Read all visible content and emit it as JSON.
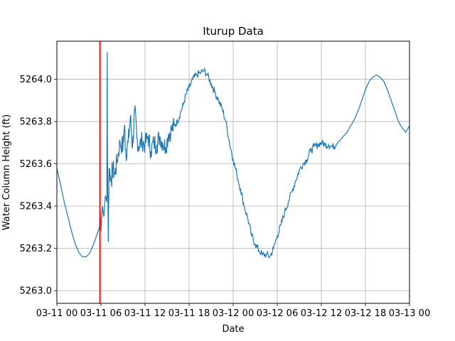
{
  "chart_data": {
    "type": "line",
    "title": "Iturup Data",
    "xlabel": "Date",
    "ylabel": "Water Column Height (ft)",
    "grid": true,
    "x_tick_labels": [
      "03-11 00",
      "03-11 06",
      "03-11 12",
      "03-11 18",
      "03-12 00",
      "03-12 06",
      "03-12 12",
      "03-12 18",
      "03-13 00"
    ],
    "x_tick_hours": [
      0,
      6,
      12,
      18,
      24,
      30,
      36,
      42,
      48
    ],
    "x_units": "hours since 03-11 00",
    "xlim": [
      0,
      48
    ],
    "y_ticks": [
      5263.0,
      5263.2,
      5263.4,
      5263.6,
      5263.8,
      5264.0
    ],
    "y_tick_labels": [
      "5263.0",
      "5263.2",
      "5263.4",
      "5263.6",
      "5263.8",
      "5264.0"
    ],
    "ylim": [
      5262.94,
      5264.18
    ],
    "vertical_marker": {
      "x": 5.85,
      "color": "#ff0000"
    },
    "series": [
      {
        "color": "#1f77b4",
        "points": [
          [
            0.0,
            5263.58
          ],
          [
            0.5,
            5263.5
          ],
          [
            1.0,
            5263.42
          ],
          [
            1.5,
            5263.35
          ],
          [
            2.0,
            5263.28
          ],
          [
            2.5,
            5263.22
          ],
          [
            3.0,
            5263.18
          ],
          [
            3.5,
            5263.16
          ],
          [
            4.0,
            5263.16
          ],
          [
            4.5,
            5263.18
          ],
          [
            5.0,
            5263.22
          ],
          [
            5.5,
            5263.27
          ],
          [
            5.8,
            5263.3
          ],
          [
            5.9,
            5263.38
          ],
          [
            6.0,
            5263.28
          ],
          [
            6.2,
            5263.4
          ],
          [
            6.4,
            5263.35
          ],
          [
            6.6,
            5263.45
          ],
          [
            6.8,
            5263.42
          ],
          [
            6.85,
            5264.13
          ],
          [
            6.9,
            5263.6
          ],
          [
            7.0,
            5263.23
          ],
          [
            7.1,
            5263.58
          ],
          [
            7.4,
            5263.52
          ],
          [
            7.6,
            5263.58
          ],
          [
            7.9,
            5263.55
          ],
          [
            8.2,
            5263.62
          ],
          [
            8.6,
            5263.7
          ],
          [
            9.0,
            5263.68
          ],
          [
            9.2,
            5263.78
          ],
          [
            9.4,
            5263.65
          ],
          [
            9.7,
            5263.7
          ],
          [
            10.0,
            5263.82
          ],
          [
            10.3,
            5263.68
          ],
          [
            10.6,
            5263.85
          ],
          [
            10.9,
            5263.72
          ],
          [
            11.2,
            5263.68
          ],
          [
            11.6,
            5263.71
          ],
          [
            12.0,
            5263.69
          ],
          [
            12.4,
            5263.73
          ],
          [
            12.8,
            5263.66
          ],
          [
            13.2,
            5263.7
          ],
          [
            13.6,
            5263.69
          ],
          [
            14.0,
            5263.73
          ],
          [
            14.4,
            5263.7
          ],
          [
            14.8,
            5263.68
          ],
          [
            15.2,
            5263.74
          ],
          [
            15.6,
            5263.76
          ],
          [
            16.0,
            5263.78
          ],
          [
            16.4,
            5263.8
          ],
          [
            16.8,
            5263.84
          ],
          [
            17.2,
            5263.88
          ],
          [
            17.6,
            5263.93
          ],
          [
            18.0,
            5263.96
          ],
          [
            18.5,
            5264.0
          ],
          [
            19.0,
            5264.02
          ],
          [
            19.5,
            5264.03
          ],
          [
            20.0,
            5264.04
          ],
          [
            20.5,
            5264.02
          ],
          [
            21.0,
            5263.98
          ],
          [
            21.5,
            5263.94
          ],
          [
            22.0,
            5263.9
          ],
          [
            22.5,
            5263.86
          ],
          [
            23.0,
            5263.8
          ],
          [
            23.5,
            5263.7
          ],
          [
            24.0,
            5263.62
          ],
          [
            24.5,
            5263.55
          ],
          [
            25.0,
            5263.48
          ],
          [
            25.5,
            5263.4
          ],
          [
            26.0,
            5263.34
          ],
          [
            26.5,
            5263.26
          ],
          [
            27.0,
            5263.22
          ],
          [
            27.5,
            5263.19
          ],
          [
            28.0,
            5263.17
          ],
          [
            28.5,
            5263.17
          ],
          [
            29.0,
            5263.16
          ],
          [
            29.5,
            5263.2
          ],
          [
            30.0,
            5263.26
          ],
          [
            30.5,
            5263.31
          ],
          [
            31.0,
            5263.37
          ],
          [
            31.5,
            5263.42
          ],
          [
            32.0,
            5263.47
          ],
          [
            32.5,
            5263.52
          ],
          [
            33.0,
            5263.57
          ],
          [
            33.5,
            5263.6
          ],
          [
            34.0,
            5263.62
          ],
          [
            34.5,
            5263.66
          ],
          [
            35.0,
            5263.68
          ],
          [
            35.5,
            5263.69
          ],
          [
            36.0,
            5263.7
          ],
          [
            36.5,
            5263.69
          ],
          [
            37.0,
            5263.69
          ],
          [
            37.5,
            5263.68
          ],
          [
            38.0,
            5263.69
          ],
          [
            38.5,
            5263.71
          ],
          [
            39.0,
            5263.73
          ],
          [
            39.5,
            5263.75
          ],
          [
            40.0,
            5263.78
          ],
          [
            40.5,
            5263.81
          ],
          [
            41.0,
            5263.85
          ],
          [
            41.5,
            5263.9
          ],
          [
            42.0,
            5263.95
          ],
          [
            42.5,
            5263.99
          ],
          [
            43.0,
            5264.01
          ],
          [
            43.5,
            5264.02
          ],
          [
            44.0,
            5264.01
          ],
          [
            44.5,
            5263.99
          ],
          [
            45.0,
            5263.95
          ],
          [
            45.5,
            5263.9
          ],
          [
            46.0,
            5263.85
          ],
          [
            46.5,
            5263.8
          ],
          [
            47.0,
            5263.77
          ],
          [
            47.5,
            5263.75
          ],
          [
            48.0,
            5263.78
          ]
        ]
      }
    ]
  }
}
